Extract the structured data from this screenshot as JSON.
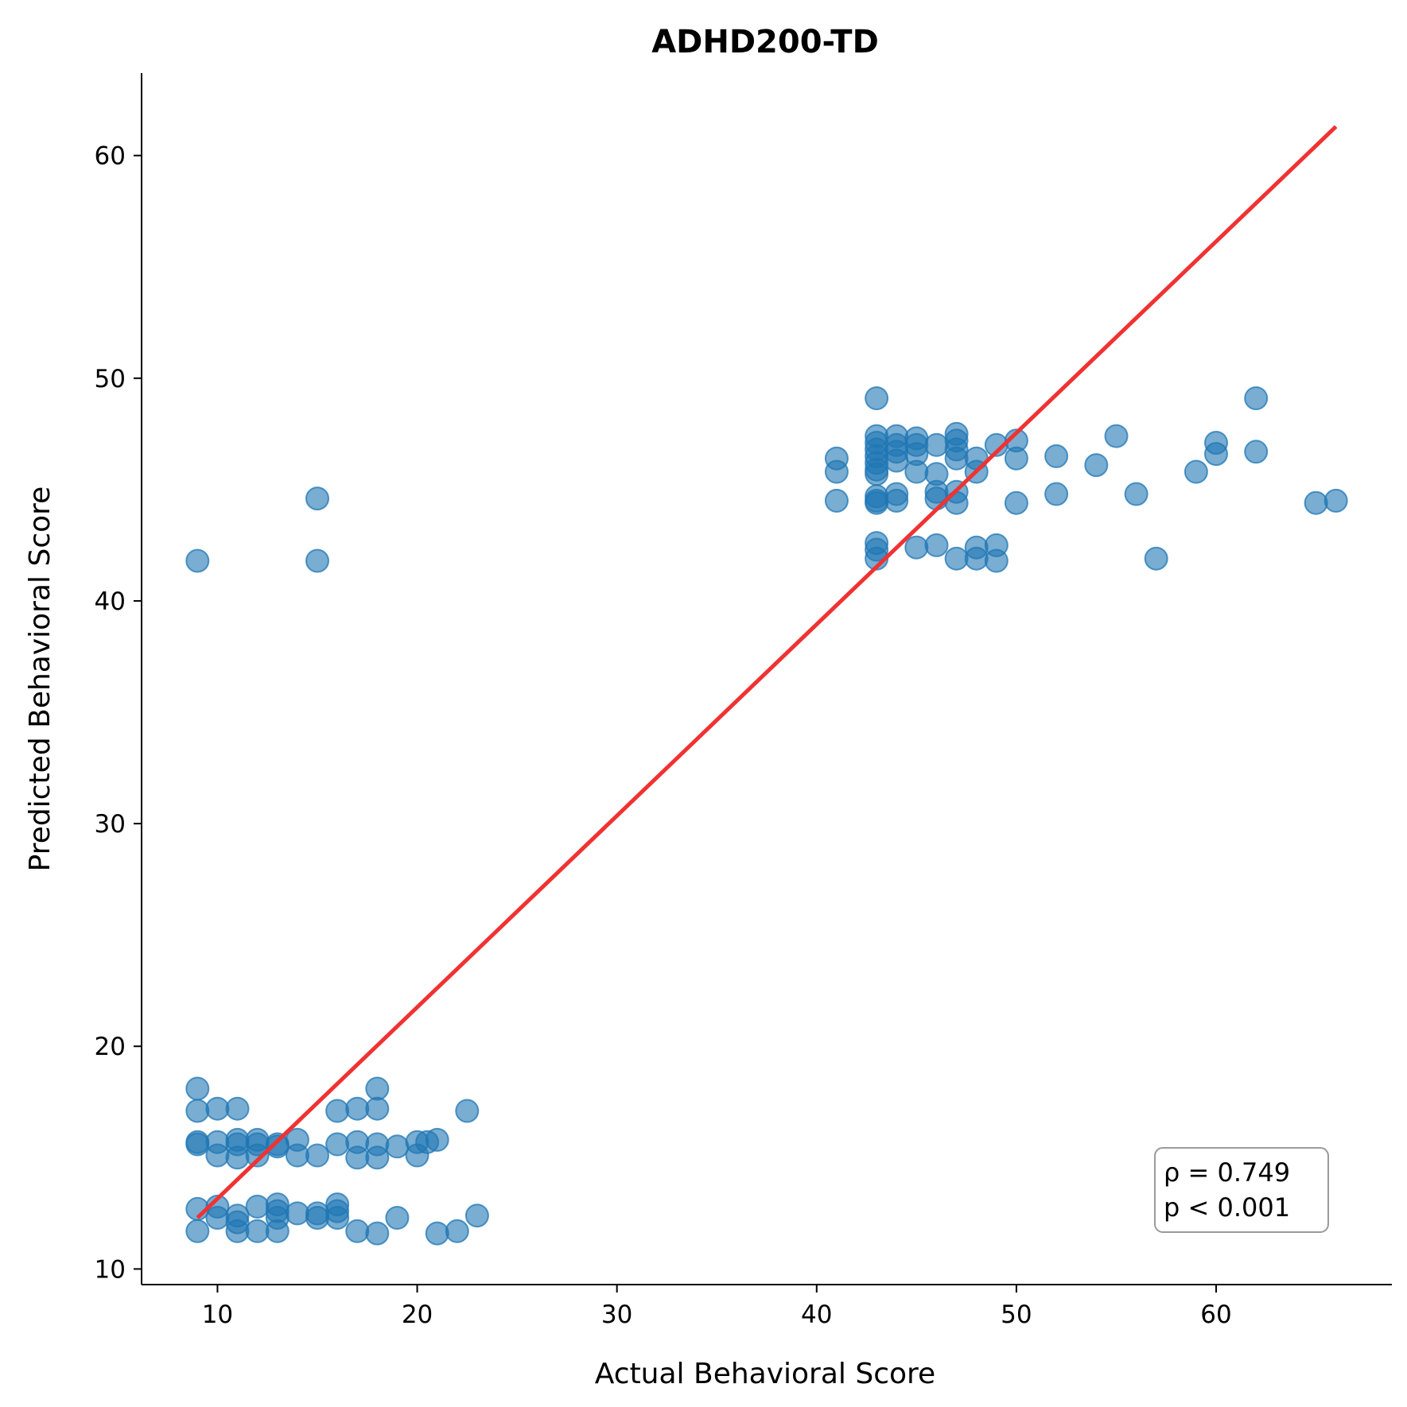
{
  "chart_data": {
    "type": "scatter",
    "title": "ADHD200-TD",
    "xlabel": "Actual Behavioral Score",
    "ylabel": "Predicted Behavioral Score",
    "xlim": [
      6.2,
      68.8
    ],
    "ylim": [
      9.3,
      63.7
    ],
    "xticks": [
      10,
      20,
      30,
      40,
      50,
      60
    ],
    "yticks": [
      10,
      20,
      30,
      40,
      50,
      60
    ],
    "grid": false,
    "point_color": "#1f77b4",
    "line_color": "#f03232",
    "regression_line": {
      "x": [
        9,
        66
      ],
      "y": [
        12.3,
        61.3
      ]
    },
    "annotation": {
      "line1": "ρ = 0.749",
      "line2": "p < 0.001",
      "placement": "bottom-right"
    },
    "points": [
      [
        9,
        41.8
      ],
      [
        15,
        44.6
      ],
      [
        15,
        41.8
      ],
      [
        9,
        18.1
      ],
      [
        9,
        17.1
      ],
      [
        9,
        15.7
      ],
      [
        9,
        15.6
      ],
      [
        9,
        12.7
      ],
      [
        9,
        11.7
      ],
      [
        10,
        17.2
      ],
      [
        10,
        15.7
      ],
      [
        10,
        15.1
      ],
      [
        10,
        12.8
      ],
      [
        10,
        12.3
      ],
      [
        11,
        17.2
      ],
      [
        11,
        15.8
      ],
      [
        11,
        15.6
      ],
      [
        11,
        15.0
      ],
      [
        11,
        12.4
      ],
      [
        11,
        12.1
      ],
      [
        11,
        11.7
      ],
      [
        12,
        15.8
      ],
      [
        12,
        15.6
      ],
      [
        12,
        15.1
      ],
      [
        12,
        12.8
      ],
      [
        12,
        11.7
      ],
      [
        13,
        15.6
      ],
      [
        13,
        15.5
      ],
      [
        13,
        12.9
      ],
      [
        13,
        12.6
      ],
      [
        13,
        12.3
      ],
      [
        13,
        11.7
      ],
      [
        14,
        15.8
      ],
      [
        14,
        15.1
      ],
      [
        14,
        12.5
      ],
      [
        15,
        15.1
      ],
      [
        15,
        12.5
      ],
      [
        15,
        12.3
      ],
      [
        16,
        17.1
      ],
      [
        16,
        15.6
      ],
      [
        16,
        12.9
      ],
      [
        16,
        12.6
      ],
      [
        16,
        12.3
      ],
      [
        17,
        17.2
      ],
      [
        17,
        15.7
      ],
      [
        17,
        15.0
      ],
      [
        17,
        11.7
      ],
      [
        18,
        18.1
      ],
      [
        18,
        17.2
      ],
      [
        18,
        15.6
      ],
      [
        18,
        15.0
      ],
      [
        18,
        11.6
      ],
      [
        19,
        15.5
      ],
      [
        19,
        12.3
      ],
      [
        20,
        15.7
      ],
      [
        20,
        15.1
      ],
      [
        20.5,
        15.7
      ],
      [
        21,
        15.8
      ],
      [
        21,
        11.6
      ],
      [
        22,
        11.7
      ],
      [
        22.5,
        17.1
      ],
      [
        23,
        12.4
      ],
      [
        41,
        46.4
      ],
      [
        41,
        45.8
      ],
      [
        41,
        44.5
      ],
      [
        43,
        49.1
      ],
      [
        43,
        47.4
      ],
      [
        43,
        47.1
      ],
      [
        43,
        46.8
      ],
      [
        43,
        46.5
      ],
      [
        43,
        46.2
      ],
      [
        43,
        45.9
      ],
      [
        43,
        45.7
      ],
      [
        43,
        44.7
      ],
      [
        43,
        44.5
      ],
      [
        43,
        44.4
      ],
      [
        43,
        42.6
      ],
      [
        43,
        42.3
      ],
      [
        43,
        41.9
      ],
      [
        44,
        47.4
      ],
      [
        44,
        47.0
      ],
      [
        44,
        46.7
      ],
      [
        44,
        46.3
      ],
      [
        44,
        44.8
      ],
      [
        44,
        44.5
      ],
      [
        45,
        47.3
      ],
      [
        45,
        47.0
      ],
      [
        45,
        46.6
      ],
      [
        45,
        45.8
      ],
      [
        45,
        42.4
      ],
      [
        46,
        47.0
      ],
      [
        46,
        45.7
      ],
      [
        46,
        44.9
      ],
      [
        46,
        44.6
      ],
      [
        46,
        42.5
      ],
      [
        47,
        47.5
      ],
      [
        47,
        47.2
      ],
      [
        47,
        46.8
      ],
      [
        47,
        46.4
      ],
      [
        47,
        44.9
      ],
      [
        47,
        44.4
      ],
      [
        47,
        41.9
      ],
      [
        48,
        46.4
      ],
      [
        48,
        45.8
      ],
      [
        48,
        42.4
      ],
      [
        48,
        41.9
      ],
      [
        49,
        47.0
      ],
      [
        49,
        42.5
      ],
      [
        49,
        41.8
      ],
      [
        50,
        47.2
      ],
      [
        50,
        46.4
      ],
      [
        50,
        44.4
      ],
      [
        52,
        46.5
      ],
      [
        52,
        44.8
      ],
      [
        54,
        46.1
      ],
      [
        55,
        47.4
      ],
      [
        56,
        44.8
      ],
      [
        57,
        41.9
      ],
      [
        59,
        45.8
      ],
      [
        60,
        47.1
      ],
      [
        60,
        46.6
      ],
      [
        62,
        49.1
      ],
      [
        62,
        46.7
      ],
      [
        65,
        44.4
      ],
      [
        66,
        44.5
      ]
    ]
  }
}
